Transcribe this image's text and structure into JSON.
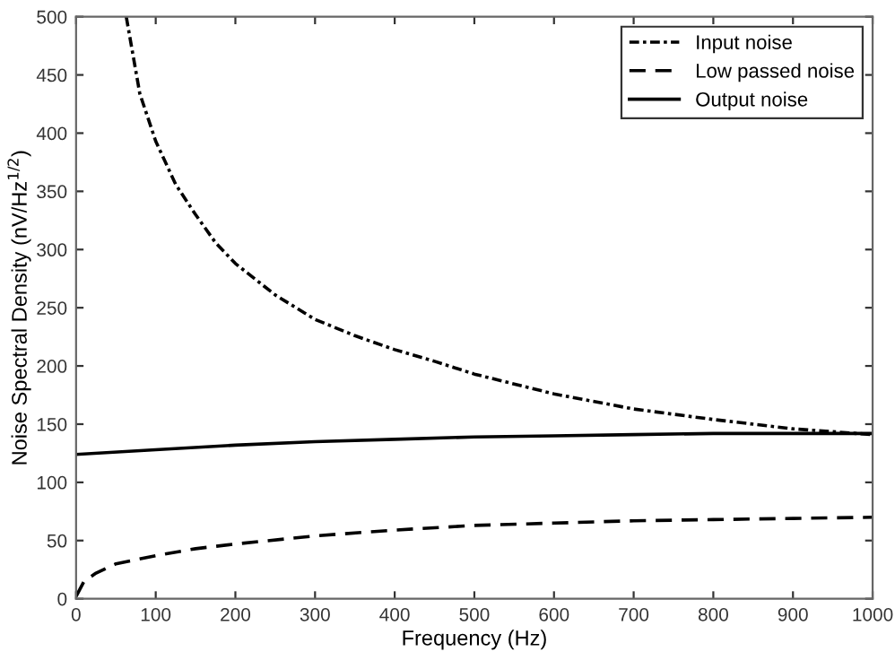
{
  "chart_data": {
    "type": "line",
    "xlabel": "Frequency (Hz)",
    "ylabel": "Noise Spectral Density (nV/Hz$^{1/2}$)",
    "xlim": [
      0,
      1000
    ],
    "ylim": [
      0,
      500
    ],
    "xticks": [
      0,
      100,
      200,
      300,
      400,
      500,
      600,
      700,
      800,
      900,
      1000
    ],
    "yticks": [
      0,
      50,
      100,
      150,
      200,
      250,
      300,
      350,
      400,
      450,
      500
    ],
    "grid": false,
    "legend": "top right",
    "series": [
      {
        "name": "Input noise",
        "color": "#000000",
        "line_style": "dashdot",
        "x": [
          63,
          80,
          100,
          125,
          150,
          175,
          200,
          250,
          300,
          350,
          400,
          450,
          500,
          600,
          700,
          800,
          900,
          1000
        ],
        "values": [
          500,
          434,
          393,
          356,
          330,
          306,
          288,
          261,
          240,
          226,
          214,
          204,
          193,
          176,
          163,
          154,
          146,
          141
        ]
      },
      {
        "name": "Low passed noise",
        "color": "#000000",
        "line_style": "dashed",
        "x": [
          0,
          10,
          25,
          50,
          100,
          150,
          200,
          300,
          400,
          500,
          600,
          700,
          800,
          900,
          1000
        ],
        "values": [
          2,
          15,
          22,
          30,
          37,
          43,
          47,
          54,
          59,
          63,
          65,
          67,
          68,
          69,
          70
        ]
      },
      {
        "name": "Output noise",
        "color": "#000000",
        "line_style": "solid",
        "x": [
          0,
          100,
          200,
          300,
          400,
          500,
          600,
          700,
          800,
          900,
          1000
        ],
        "values": [
          124,
          128,
          132,
          135,
          137,
          139,
          140,
          141,
          142,
          142,
          142
        ]
      }
    ]
  }
}
